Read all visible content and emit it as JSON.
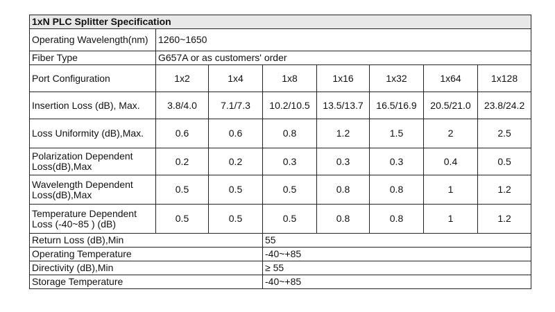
{
  "title": "1xN PLC Splitter Specification",
  "operating_wavelength": {
    "label": "Operating Wavelength(nm)",
    "value": "1260~1650"
  },
  "fiber_type": {
    "label": "Fiber Type",
    "value": "G657A or as customers' order"
  },
  "port_configuration": {
    "label": "Port Configuration",
    "ports": [
      "1x2",
      "1x4",
      "1x8",
      "1x16",
      "1x32",
      "1x64",
      "1x128"
    ]
  },
  "rows": [
    {
      "label": "Insertion Loss (dB), Max.",
      "values": [
        "3.8/4.0",
        "7.1/7.3",
        "10.2/10.5",
        "13.5/13.7",
        "16.5/16.9",
        "20.5/21.0",
        "23.8/24.2"
      ]
    },
    {
      "label": "Loss Uniformity (dB),Max.",
      "values": [
        "0.6",
        "0.6",
        "0.8",
        "1.2",
        "1.5",
        "2",
        "2.5"
      ]
    },
    {
      "label": "Polarization Dependent Loss(dB),Max",
      "values": [
        "0.2",
        "0.2",
        "0.3",
        "0.3",
        "0.3",
        "0.4",
        "0.5"
      ]
    },
    {
      "label": "Wavelength Dependent Loss(dB),Max",
      "values": [
        "0.5",
        "0.5",
        "0.5",
        "0.8",
        "0.8",
        "1",
        "1.2"
      ]
    },
    {
      "label": "Temperature Dependent Loss (-40~85 ) (dB)",
      "values": [
        "0.5",
        "0.5",
        "0.5",
        "0.8",
        "0.8",
        "1",
        "1.2"
      ]
    }
  ],
  "footer_rows": [
    {
      "label": "Return Loss (dB),Min",
      "value": "55"
    },
    {
      "label": "Operating Temperature",
      "value": "-40~+85"
    },
    {
      "label": "Directivity (dB),Min",
      "value": "≥ 55"
    },
    {
      "label": "Storage Temperature",
      "value": "-40~+85"
    }
  ]
}
